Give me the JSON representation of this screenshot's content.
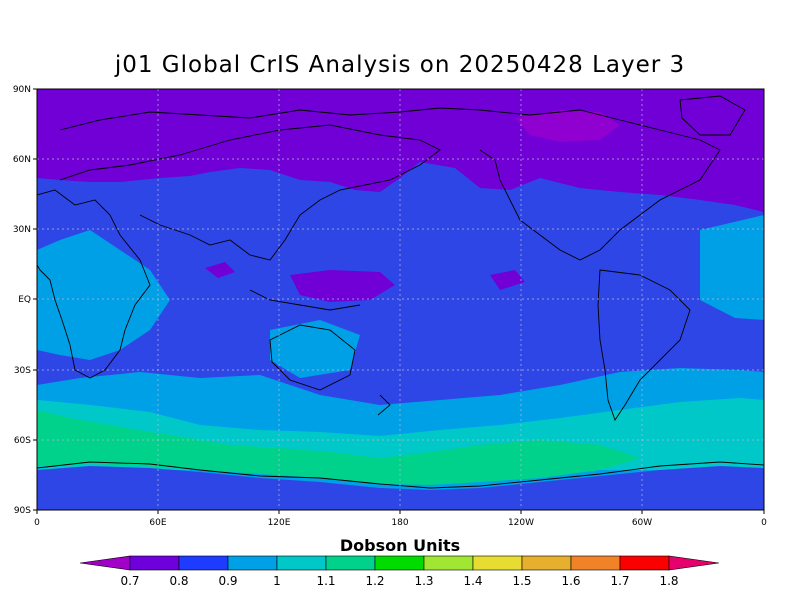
{
  "title": "j01 Global CrIS Analysis on 20250428 Layer 3",
  "map": {
    "lat_labels": [
      "90N",
      "60N",
      "30N",
      "EQ",
      "30S",
      "60S",
      "90S"
    ],
    "lon_labels": [
      "0",
      "60E",
      "120E",
      "180",
      "120W",
      "60W",
      "0"
    ],
    "grid": true,
    "background_level": "0.8-0.9"
  },
  "colorbar": {
    "title": "Dobson Units",
    "levels": [
      "0.7",
      "0.8",
      "0.9",
      "1",
      "1.1",
      "1.2",
      "1.3",
      "1.4",
      "1.5",
      "1.6",
      "1.7",
      "1.8"
    ],
    "colors": [
      "#a000c8",
      "#6e00dc",
      "#1e3cff",
      "#00a0e6",
      "#00c8c8",
      "#00d28c",
      "#00dc00",
      "#a0e632",
      "#e6dc32",
      "#e6af2d",
      "#f08228",
      "#fa0000",
      "#e6006e"
    ]
  }
}
